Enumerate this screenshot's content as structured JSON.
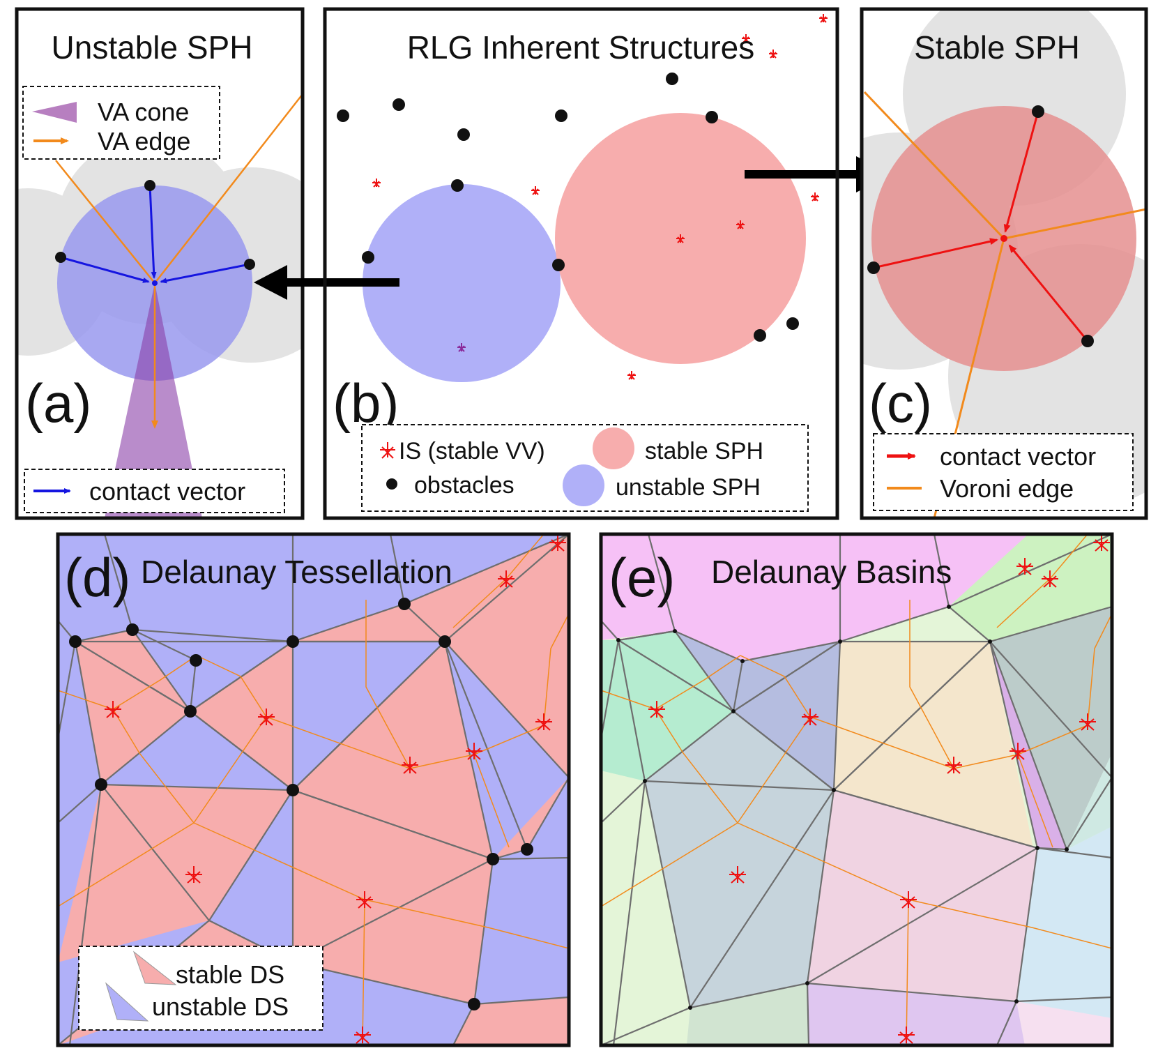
{
  "panel_a": {
    "title": "Unstable SPH",
    "letter": "(a)",
    "legend": {
      "cone": "VA cone",
      "edge": "VA edge",
      "contact": "contact vector"
    }
  },
  "panel_b": {
    "title": "RLG Inherent Structures",
    "letter": "(b)",
    "legend": {
      "is": "IS (stable VV)",
      "obstacles": "obstacles",
      "stable": "stable SPH",
      "unstable": "unstable SPH"
    }
  },
  "panel_c": {
    "title": "Stable SPH",
    "letter": "(c)",
    "legend": {
      "contact": "contact vector",
      "voronoi": "Voroni edge"
    }
  },
  "panel_d": {
    "title": "Delaunay Tessellation",
    "letter": "(d)",
    "legend": {
      "stable": "stable DS",
      "unstable": "unstable DS"
    }
  },
  "panel_e": {
    "title": "Delaunay Basins",
    "letter": "(e)"
  },
  "colors": {
    "stable": "#f7adad",
    "unstable": "#b0b0f8",
    "voronoi": "#f28a1c",
    "contact_blue": "#1515e0",
    "contact_red": "#ee1111",
    "cone": "#b77fc0",
    "obstacle": "#111111",
    "gray_disk": "#e3e3e3",
    "delaunay_edge": "#777777"
  }
}
